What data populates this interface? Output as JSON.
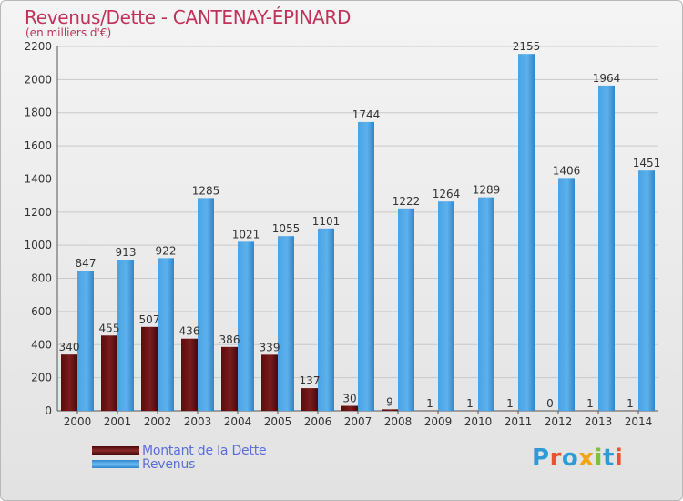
{
  "header": {
    "title": "Revenus/Dette - CANTENAY-ÉPINARD",
    "subtitle": "(en milliers d'€)"
  },
  "logo": {
    "text": "Proxiti",
    "colors": [
      "#2f9bd6",
      "#e8542f",
      "#2f9bd6",
      "#f2a51a",
      "#7cc242",
      "#2f9bd6",
      "#e8542f"
    ]
  },
  "chart_data": {
    "type": "bar",
    "title": "Revenus/Dette - CANTENAY-ÉPINARD",
    "subtitle": "(en milliers d'€)",
    "categories": [
      "2000",
      "2001",
      "2002",
      "2003",
      "2004",
      "2005",
      "2006",
      "2007",
      "2008",
      "2009",
      "2010",
      "2011",
      "2012",
      "2013",
      "2014"
    ],
    "series": [
      {
        "name": "Montant de la Dette",
        "color": "#6e1414",
        "values": [
          340,
          455,
          507,
          436,
          386,
          339,
          137,
          30,
          9,
          1,
          1,
          1,
          0,
          1,
          1
        ],
        "labels": [
          "340",
          "455",
          "507",
          "436",
          "386",
          "339",
          "137",
          "30",
          "9",
          "1",
          "1",
          "1",
          "0",
          "1",
          "1"
        ]
      },
      {
        "name": "Revenus",
        "color": "#3d95d8",
        "values": [
          847,
          913,
          922,
          1285,
          1021,
          1055,
          1101,
          1744,
          1222,
          1264,
          1289,
          2155,
          1406,
          1964,
          1451
        ],
        "labels": [
          "847",
          "913",
          "922",
          "1285",
          "1021",
          "1055",
          "1101",
          "1744",
          "1222",
          "1264",
          "1289",
          "2155",
          "1406",
          "1964",
          "1451"
        ]
      }
    ],
    "yticks": [
      "0",
      "200",
      "400",
      "600",
      "800",
      "1000",
      "1200",
      "1400",
      "1600",
      "1800",
      "2000",
      "2200"
    ],
    "ylim": [
      0,
      2200
    ],
    "grid": true,
    "legend": "bottom-left"
  }
}
